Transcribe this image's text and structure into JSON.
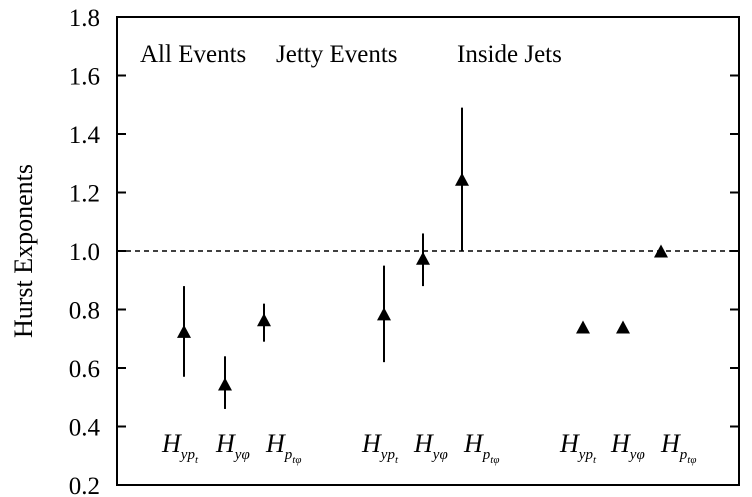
{
  "chart_data": {
    "type": "scatter",
    "ylabel": "Hurst Exponents",
    "xlabel": "",
    "ylim": [
      0.2,
      1.8
    ],
    "yticks": [
      "0.2",
      "0.4",
      "0.6",
      "0.8",
      "1.0",
      "1.2",
      "1.4",
      "1.6",
      "1.8"
    ],
    "reference_line": {
      "y": 1.0,
      "style": "dashed"
    },
    "groups": [
      "All Events",
      "Jetty Events",
      "Inside Jets"
    ],
    "point_labels": [
      {
        "base": "H",
        "sub": "yp",
        "subsub": "t"
      },
      {
        "base": "H",
        "sub": "yφ",
        "subsub": ""
      },
      {
        "base": "H",
        "sub": "p",
        "subsub": "tφ"
      }
    ],
    "series": [
      {
        "group": "All Events",
        "label": "H_ypt",
        "value": 0.72,
        "err_low": 0.57,
        "err_high": 0.88
      },
      {
        "group": "All Events",
        "label": "H_yφ",
        "value": 0.54,
        "err_low": 0.46,
        "err_high": 0.64
      },
      {
        "group": "All Events",
        "label": "H_ptφ",
        "value": 0.76,
        "err_low": 0.69,
        "err_high": 0.82
      },
      {
        "group": "Jetty Events",
        "label": "H_ypt",
        "value": 0.78,
        "err_low": 0.62,
        "err_high": 0.95
      },
      {
        "group": "Jetty Events",
        "label": "H_yφ",
        "value": 0.97,
        "err_low": 0.88,
        "err_high": 1.06
      },
      {
        "group": "Jetty Events",
        "label": "H_ptφ",
        "value": 1.24,
        "err_low": 1.0,
        "err_high": 1.49
      },
      {
        "group": "Inside Jets",
        "label": "H_ypt",
        "value": 0.735,
        "err_low": 0.73,
        "err_high": 0.74
      },
      {
        "group": "Inside Jets",
        "label": "H_yφ",
        "value": 0.735,
        "err_low": 0.73,
        "err_high": 0.74
      },
      {
        "group": "Inside Jets",
        "label": "H_ptφ",
        "value": 0.995,
        "err_low": 0.99,
        "err_high": 1.0
      }
    ]
  }
}
